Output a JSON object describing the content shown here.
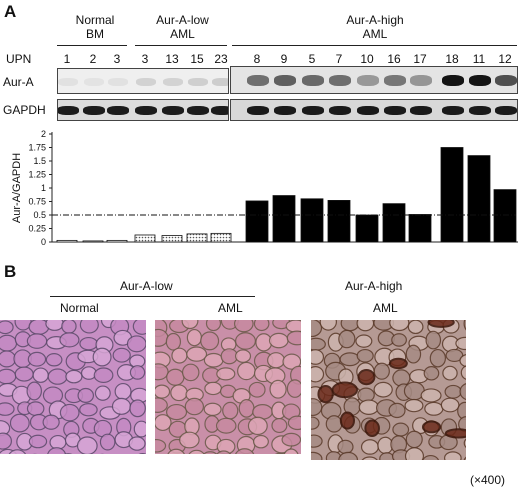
{
  "panel_a": {
    "letter": "A",
    "groups": [
      {
        "line1": "Normal",
        "line2": "BM"
      },
      {
        "line1": "Aur-A-low",
        "line2": "AML"
      },
      {
        "line1": "Aur-A-high",
        "line2": "AML"
      }
    ],
    "upn_label": "UPN",
    "upn": [
      "1",
      "2",
      "3",
      "3",
      "13",
      "15",
      "23",
      "8",
      "9",
      "5",
      "7",
      "10",
      "16",
      "17",
      "18",
      "11",
      "12"
    ],
    "rows": [
      "Aur-A",
      "GAPDH"
    ]
  },
  "chart_data": {
    "type": "bar",
    "ylabel": "Aur-A/GAPDH",
    "ylim": [
      0,
      2
    ],
    "yticks": [
      "0",
      "0.25",
      "0.5",
      "0.75",
      "1",
      "1.25",
      "1.5",
      "1.75",
      "2"
    ],
    "categories": [
      "1",
      "2",
      "3",
      "3",
      "13",
      "15",
      "23",
      "8",
      "9",
      "5",
      "7",
      "10",
      "16",
      "17",
      "18",
      "11",
      "12"
    ],
    "values": [
      0.03,
      0.02,
      0.03,
      0.13,
      0.12,
      0.15,
      0.16,
      0.76,
      0.86,
      0.8,
      0.77,
      0.5,
      0.71,
      0.51,
      1.75,
      1.6,
      0.97
    ],
    "group_fill": [
      "white",
      "white",
      "white",
      "dotted",
      "dotted",
      "dotted",
      "dotted",
      "black",
      "black",
      "black",
      "black",
      "black",
      "black",
      "black",
      "black",
      "black",
      "black"
    ],
    "threshold": 0.5,
    "grid": false
  },
  "panel_b": {
    "letter": "B",
    "group_low": "Aur-A-low",
    "group_high": "Aur-A-high",
    "sub_normal": "Normal",
    "sub_aml_low": "AML",
    "sub_aml_high": "AML",
    "magnification": "(×400)"
  }
}
